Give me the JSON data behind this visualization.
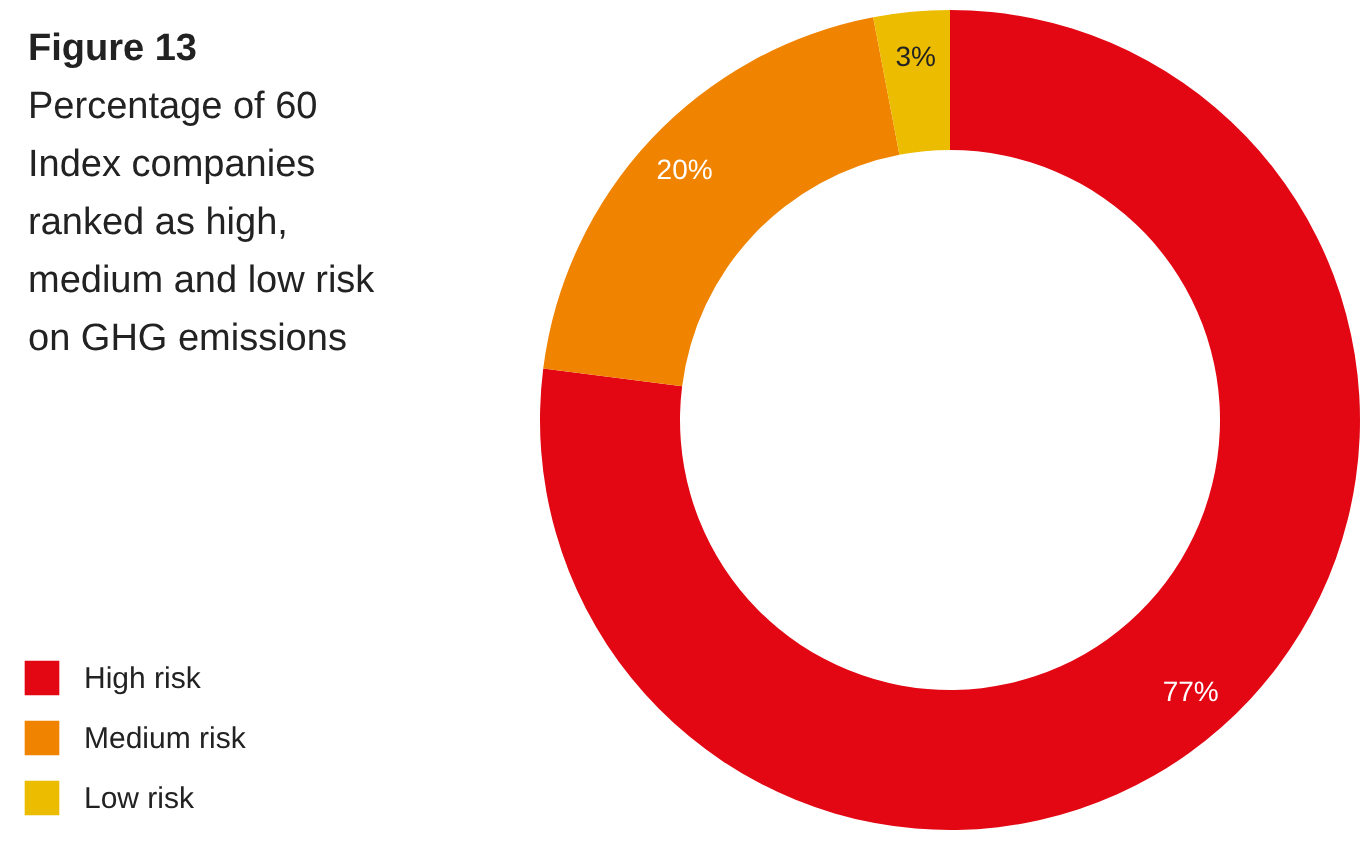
{
  "chart_data": {
    "type": "donut",
    "title": "Figure 13",
    "subtitle": "Percentage of 60 Index companies ranked as high, medium and low risk on GHG emissions",
    "categories": [
      "High risk",
      "Medium risk",
      "Low risk"
    ],
    "values": [
      77,
      20,
      3
    ],
    "colors": [
      "#e30613",
      "#f08300",
      "#ecbc00"
    ],
    "value_labels": [
      "77%",
      "20%",
      "3%"
    ],
    "legend": "bottom left"
  }
}
